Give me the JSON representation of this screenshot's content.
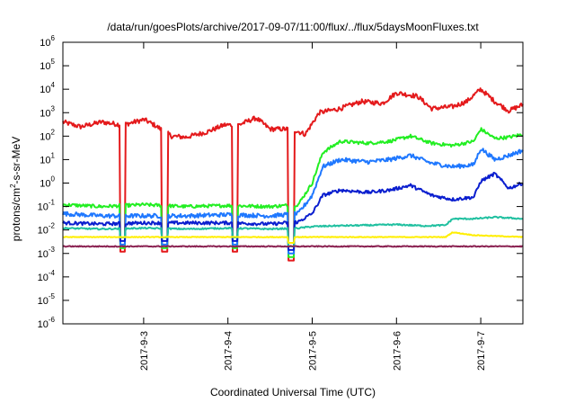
{
  "chart_data": {
    "type": "line",
    "title": "/data/run/goesPlots/archive/2017-09-07/11:00/flux/../flux/5daysMoonFluxes.txt",
    "xlabel": "Coordinated Universal Time (UTC)",
    "ylabel": {
      "prefix": "protons/cm",
      "sup": "2",
      "suffix": "-s-sr-MeV"
    },
    "y_scale": "log",
    "ylim": [
      1e-06,
      1000000.0
    ],
    "y_ticks": [
      {
        "value": 1e-06,
        "base": "10",
        "exp": "-6"
      },
      {
        "value": 1e-05,
        "base": "10",
        "exp": "-5"
      },
      {
        "value": 0.0001,
        "base": "10",
        "exp": "-4"
      },
      {
        "value": 0.001,
        "base": "10",
        "exp": "-3"
      },
      {
        "value": 0.01,
        "base": "10",
        "exp": "-2"
      },
      {
        "value": 0.1,
        "base": "10",
        "exp": "-1"
      },
      {
        "value": 1,
        "base": "10",
        "exp": "0"
      },
      {
        "value": 10,
        "base": "10",
        "exp": "1"
      },
      {
        "value": 100,
        "base": "10",
        "exp": "2"
      },
      {
        "value": 1000,
        "base": "10",
        "exp": "3"
      },
      {
        "value": 10000,
        "base": "10",
        "exp": "4"
      },
      {
        "value": 100000,
        "base": "10",
        "exp": "5"
      },
      {
        "value": 1000000,
        "base": "10",
        "exp": "6"
      }
    ],
    "xlim": [
      "2017-09-02 01:00",
      "2017-09-07 12:00"
    ],
    "x_ticks": [
      {
        "value": "2017-09-03 00:00",
        "label": "2017-9-3"
      },
      {
        "value": "2017-09-04 00:00",
        "label": "2017-9-4"
      },
      {
        "value": "2017-09-05 00:00",
        "label": "2017-9-5"
      },
      {
        "value": "2017-09-06 00:00",
        "label": "2017-9-6"
      },
      {
        "value": "2017-09-07 00:00",
        "label": "2017-9-7"
      }
    ],
    "grid": false,
    "legend": false,
    "series": [
      {
        "color": "#e41a1c",
        "points": [
          [
            "2017-09-02 01:00",
            400
          ],
          [
            "2017-09-02 06:00",
            250
          ],
          [
            "2017-09-02 12:00",
            400
          ],
          [
            "2017-09-02 18:00",
            300
          ],
          [
            "2017-09-03 00:00",
            500
          ],
          [
            "2017-09-02 21:00",
            900
          ],
          [
            "2017-09-03 03:00",
            300
          ],
          [
            "2017-09-03 08:00",
            100
          ],
          [
            "2017-09-03 12:00",
            90
          ],
          [
            "2017-09-03 18:00",
            150
          ],
          [
            "2017-09-03 23:00",
            300
          ],
          [
            "2017-09-04 03:00",
            300
          ],
          [
            "2017-09-04 08:00",
            600
          ],
          [
            "2017-09-04 12:00",
            200
          ],
          [
            "2017-09-04 18:00",
            200
          ],
          [
            "2017-09-04 22:00",
            120
          ],
          [
            "2017-09-05 02:00",
            1000
          ],
          [
            "2017-09-05 08:00",
            1500
          ],
          [
            "2017-09-05 14:00",
            3000
          ],
          [
            "2017-09-05 20:00",
            2500
          ],
          [
            "2017-09-06 00:00",
            7000
          ],
          [
            "2017-09-06 06:00",
            5000
          ],
          [
            "2017-09-06 10:00",
            1500
          ],
          [
            "2017-09-06 16:00",
            1800
          ],
          [
            "2017-09-06 20:00",
            3000
          ],
          [
            "2017-09-07 00:00",
            10000
          ],
          [
            "2017-09-07 04:00",
            3000
          ],
          [
            "2017-09-07 08:00",
            1200
          ],
          [
            "2017-09-07 12:00",
            2200
          ]
        ]
      },
      {
        "color": "#22ee22",
        "points": [
          [
            "2017-09-02 01:00",
            0.12
          ],
          [
            "2017-09-02 12:00",
            0.1
          ],
          [
            "2017-09-03 00:00",
            0.12
          ],
          [
            "2017-09-03 12:00",
            0.1
          ],
          [
            "2017-09-04 00:00",
            0.11
          ],
          [
            "2017-09-04 12:00",
            0.1
          ],
          [
            "2017-09-04 20:00",
            0.12
          ],
          [
            "2017-09-05 00:00",
            1
          ],
          [
            "2017-09-05 03:00",
            20
          ],
          [
            "2017-09-05 08:00",
            60
          ],
          [
            "2017-09-05 16:00",
            50
          ],
          [
            "2017-09-05 22:00",
            60
          ],
          [
            "2017-09-06 04:00",
            100
          ],
          [
            "2017-09-06 10:00",
            50
          ],
          [
            "2017-09-06 16:00",
            40
          ],
          [
            "2017-09-06 22:00",
            60
          ],
          [
            "2017-09-07 00:00",
            200
          ],
          [
            "2017-09-07 04:00",
            80
          ],
          [
            "2017-09-07 08:00",
            90
          ],
          [
            "2017-09-07 12:00",
            120
          ]
        ]
      },
      {
        "color": "#1f78ff",
        "points": [
          [
            "2017-09-02 01:00",
            0.05
          ],
          [
            "2017-09-02 12:00",
            0.04
          ],
          [
            "2017-09-03 00:00",
            0.04
          ],
          [
            "2017-09-03 12:00",
            0.04
          ],
          [
            "2017-09-04 00:00",
            0.045
          ],
          [
            "2017-09-04 12:00",
            0.04
          ],
          [
            "2017-09-04 20:00",
            0.05
          ],
          [
            "2017-09-05 00:00",
            0.3
          ],
          [
            "2017-09-05 03:00",
            5
          ],
          [
            "2017-09-05 08:00",
            10
          ],
          [
            "2017-09-05 16:00",
            8
          ],
          [
            "2017-09-05 22:00",
            10
          ],
          [
            "2017-09-06 04:00",
            15
          ],
          [
            "2017-09-06 10:00",
            7
          ],
          [
            "2017-09-06 16:00",
            5
          ],
          [
            "2017-09-06 22:00",
            6
          ],
          [
            "2017-09-07 00:00",
            30
          ],
          [
            "2017-09-07 04:00",
            10
          ],
          [
            "2017-09-07 08:00",
            15
          ],
          [
            "2017-09-07 12:00",
            25
          ]
        ]
      },
      {
        "color": "#0a1ecf",
        "points": [
          [
            "2017-09-02 01:00",
            0.02
          ],
          [
            "2017-09-02 12:00",
            0.018
          ],
          [
            "2017-09-03 00:00",
            0.02
          ],
          [
            "2017-09-03 12:00",
            0.02
          ],
          [
            "2017-09-04 00:00",
            0.02
          ],
          [
            "2017-09-04 12:00",
            0.018
          ],
          [
            "2017-09-04 20:00",
            0.022
          ],
          [
            "2017-09-05 00:00",
            0.05
          ],
          [
            "2017-09-05 03:00",
            0.3
          ],
          [
            "2017-09-05 08:00",
            0.5
          ],
          [
            "2017-09-05 16:00",
            0.4
          ],
          [
            "2017-09-05 22:00",
            0.5
          ],
          [
            "2017-09-06 04:00",
            0.8
          ],
          [
            "2017-09-06 10:00",
            0.3
          ],
          [
            "2017-09-06 16:00",
            0.2
          ],
          [
            "2017-09-06 22:00",
            0.25
          ],
          [
            "2017-09-07 00:00",
            1.2
          ],
          [
            "2017-09-07 04:00",
            2.5
          ],
          [
            "2017-09-07 08:00",
            0.6
          ],
          [
            "2017-09-07 12:00",
            1
          ]
        ]
      },
      {
        "color": "#20c0a0",
        "points": [
          [
            "2017-09-02 01:00",
            0.012
          ],
          [
            "2017-09-02 12:00",
            0.011
          ],
          [
            "2017-09-03 00:00",
            0.012
          ],
          [
            "2017-09-03 12:00",
            0.011
          ],
          [
            "2017-09-04 00:00",
            0.012
          ],
          [
            "2017-09-04 12:00",
            0.011
          ],
          [
            "2017-09-04 20:00",
            0.012
          ],
          [
            "2017-09-05 00:00",
            0.014
          ],
          [
            "2017-09-05 06:00",
            0.015
          ],
          [
            "2017-09-05 16:00",
            0.016
          ],
          [
            "2017-09-06 00:00",
            0.017
          ],
          [
            "2017-09-06 08:00",
            0.015
          ],
          [
            "2017-09-06 14:00",
            0.016
          ],
          [
            "2017-09-06 16:00",
            0.03
          ],
          [
            "2017-09-06 22:00",
            0.03
          ],
          [
            "2017-09-07 04:00",
            0.035
          ],
          [
            "2017-09-07 12:00",
            0.03
          ]
        ]
      },
      {
        "color": "#ffee00",
        "points": [
          [
            "2017-09-02 01:00",
            0.005
          ],
          [
            "2017-09-03 00:00",
            0.005
          ],
          [
            "2017-09-04 00:00",
            0.005
          ],
          [
            "2017-09-05 00:00",
            0.005
          ],
          [
            "2017-09-06 00:00",
            0.005
          ],
          [
            "2017-09-06 14:00",
            0.005
          ],
          [
            "2017-09-06 16:00",
            0.008
          ],
          [
            "2017-09-06 22:00",
            0.006
          ],
          [
            "2017-09-07 12:00",
            0.005
          ]
        ]
      },
      {
        "color": "#8b2252",
        "points": [
          [
            "2017-09-02 01:00",
            0.002
          ],
          [
            "2017-09-03 00:00",
            0.002
          ],
          [
            "2017-09-04 00:00",
            0.002
          ],
          [
            "2017-09-05 00:00",
            0.002
          ],
          [
            "2017-09-06 00:00",
            0.002
          ],
          [
            "2017-09-07 00:00",
            0.002
          ],
          [
            "2017-09-07 12:00",
            0.002
          ]
        ]
      }
    ],
    "dips": [
      {
        "x": "2017-09-02 18:00",
        "value": 0.0012
      },
      {
        "x": "2017-09-03 06:00",
        "value": 0.0012
      },
      {
        "x": "2017-09-04 02:00",
        "value": 0.0012
      },
      {
        "x": "2017-09-04 18:00",
        "value": 0.0005
      }
    ]
  }
}
